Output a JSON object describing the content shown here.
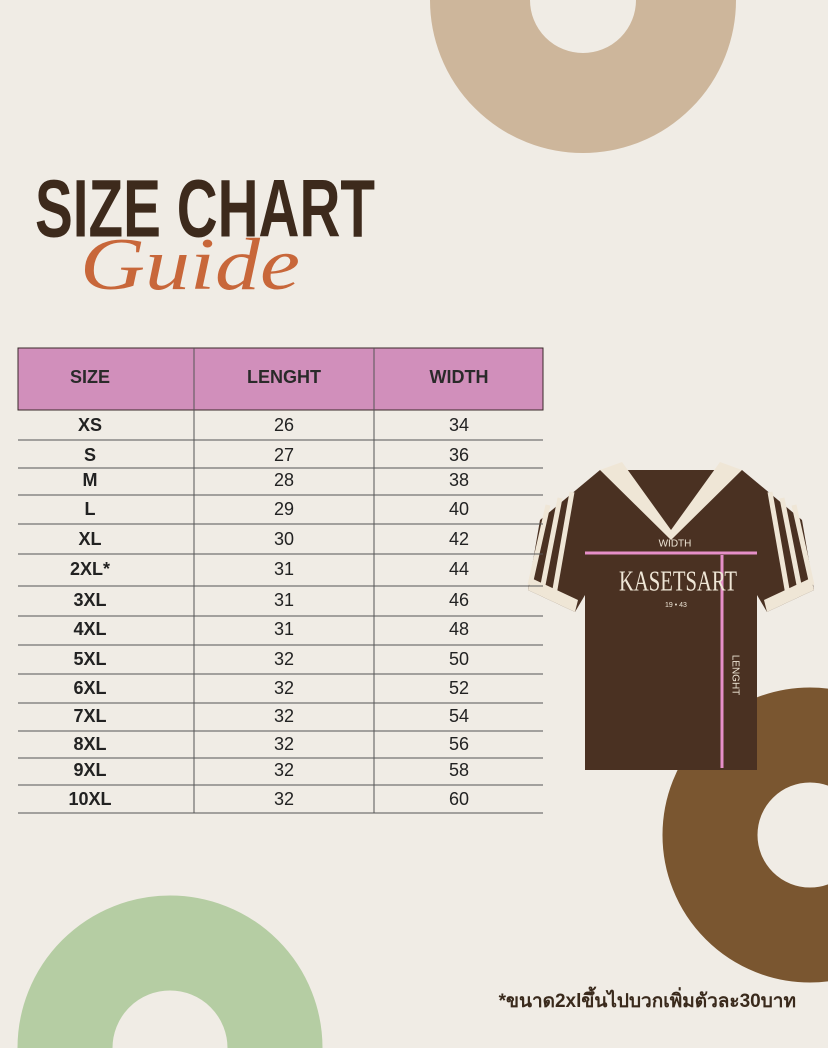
{
  "header": {
    "title": "SIZE CHART",
    "subtitle": "Guide"
  },
  "table": {
    "columns": [
      "SIZE",
      "LENGHT",
      "WIDTH"
    ],
    "rows": [
      [
        "XS",
        26,
        34
      ],
      [
        "S",
        27,
        36
      ],
      [
        "M",
        28,
        38
      ],
      [
        "L",
        29,
        40
      ],
      [
        "XL",
        30,
        42
      ],
      [
        "2XL*",
        31,
        44
      ],
      [
        "3XL",
        31,
        46
      ],
      [
        "4XL",
        31,
        48
      ],
      [
        "5XL",
        32,
        50
      ],
      [
        "6XL",
        32,
        52
      ],
      [
        "7XL",
        32,
        54
      ],
      [
        "8XL",
        32,
        56
      ],
      [
        "9XL",
        32,
        58
      ],
      [
        "10XL",
        32,
        60
      ]
    ]
  },
  "shirt": {
    "width_label": "WIDTH",
    "length_label": "LENGHT",
    "brand": "KASETSART",
    "year": "19 • 43"
  },
  "note": "*ขนาด2xlขึ้นไปบวกเพิ่มตัวละ30บาท"
}
